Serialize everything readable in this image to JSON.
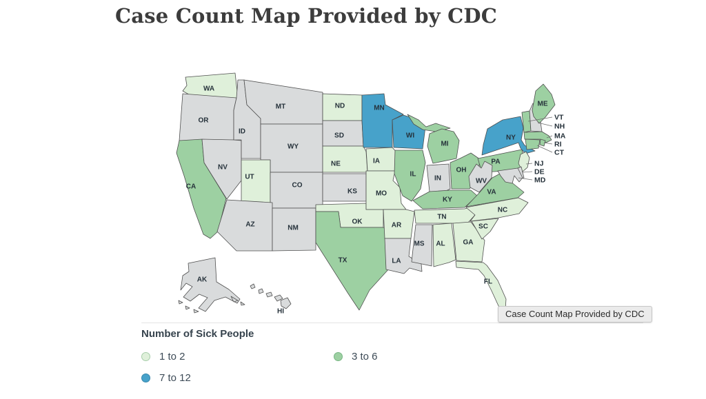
{
  "title": "Case Count Map Provided by CDC",
  "tooltip": {
    "text": "Case Count Map Provided by CDC"
  },
  "legend": {
    "title": "Number of Sick People",
    "items": [
      {
        "label": "1 to 2",
        "key": "g1"
      },
      {
        "label": "3 to 6",
        "key": "g2"
      },
      {
        "label": "7 to 12",
        "key": "g3"
      }
    ]
  },
  "colors": {
    "g1": "#dff0da",
    "g1_border": "#a6cda9",
    "g2": "#9dd0a2",
    "g2_border": "#77b583",
    "g3": "#47a2ca",
    "g3_border": "#3787ac",
    "none": "#d9dbdc",
    "state_border": "#4e4e4e",
    "label": "#25313a",
    "leader": "#6b6b6b"
  },
  "chart_data": {
    "type": "choropleth",
    "title": "Case Count Map Provided by CDC",
    "legend_title": "Number of Sick People",
    "categories": [
      "1 to 2",
      "3 to 6",
      "7 to 12"
    ],
    "no_data_category": "none",
    "states": {
      "WA": "1 to 2",
      "OR": "none",
      "CA": "3 to 6",
      "NV": "none",
      "ID": "none",
      "MT": "none",
      "WY": "none",
      "UT": "1 to 2",
      "CO": "none",
      "AZ": "none",
      "NM": "none",
      "ND": "1 to 2",
      "SD": "none",
      "NE": "1 to 2",
      "KS": "none",
      "OK": "1 to 2",
      "TX": "3 to 6",
      "MN": "7 to 12",
      "IA": "1 to 2",
      "MO": "1 to 2",
      "AR": "1 to 2",
      "LA": "none",
      "WI": "7 to 12",
      "IL": "3 to 6",
      "MI": "3 to 6",
      "IN": "none",
      "OH": "3 to 6",
      "KY": "3 to 6",
      "TN": "1 to 2",
      "MS": "none",
      "AL": "1 to 2",
      "GA": "1 to 2",
      "FL": "1 to 2",
      "SC": "1 to 2",
      "NC": "1 to 2",
      "VA": "3 to 6",
      "PA": "3 to 6",
      "WV": "none",
      "NY": "7 to 12",
      "NJ": "1 to 2",
      "DE": "none",
      "MD": "none",
      "VT": "3 to 6",
      "NH": "none",
      "MA": "3 to 6",
      "RI": "3 to 6",
      "CT": "3 to 6",
      "ME": "3 to 6",
      "AK": "none",
      "HI": "none"
    }
  }
}
